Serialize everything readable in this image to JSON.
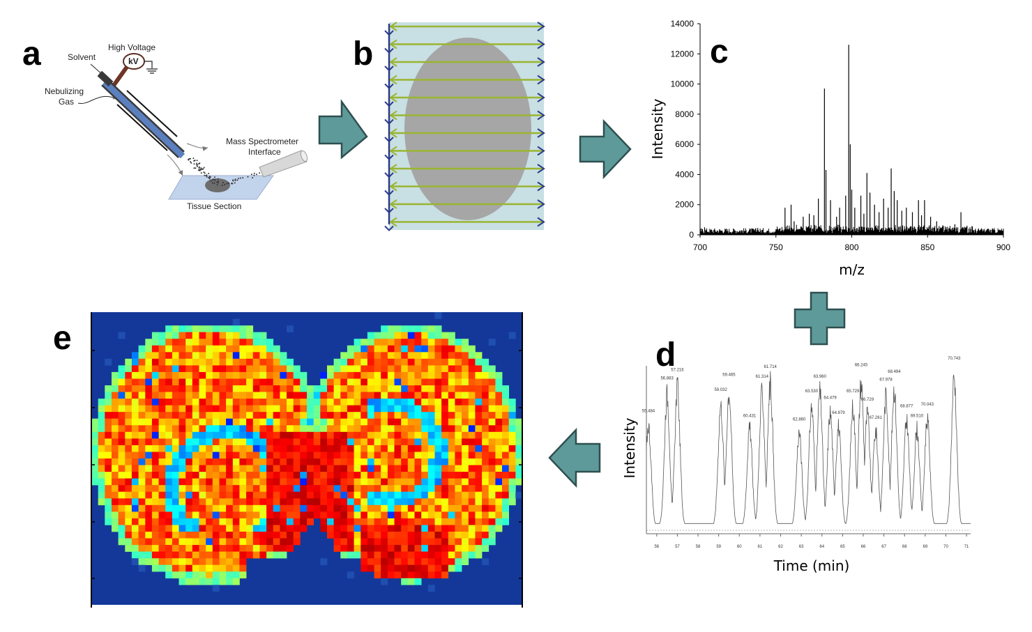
{
  "panels": {
    "a": {
      "letter": "a",
      "labels": {
        "high_voltage": "High Voltage",
        "kv": "kV",
        "solvent": "Solvent",
        "nebulizing_1": "Nebulizing",
        "nebulizing_2": "Gas",
        "ms_interface_1": "Mass Spectrometer",
        "ms_interface_2": "Interface",
        "tissue_section": "Tissue Section"
      }
    },
    "b": {
      "letter": "b",
      "scan_rows": 12
    },
    "c": {
      "letter": "c"
    },
    "d": {
      "letter": "d"
    },
    "e": {
      "letter": "e",
      "grid_cols": 64,
      "grid_rows": 44
    }
  },
  "colors": {
    "arrow_fill": "#5e9a9a",
    "arrow_stroke": "#2f4f4f",
    "scan_line": "#9ab530",
    "scan_arrow": "#2c3a8a",
    "scan_bg": "#c8dfe3",
    "tissue_gray": "#a6a6a6",
    "heatmap_bg": "#14389a"
  },
  "chart_data": [
    {
      "id": "mass-spectrum",
      "type": "line",
      "title": "",
      "xlabel": "m/z",
      "ylabel": "Intensity",
      "xlim": [
        700,
        900
      ],
      "ylim": [
        0,
        14000
      ],
      "xticks": [
        700,
        750,
        800,
        850,
        900
      ],
      "yticks": [
        0,
        2000,
        4000,
        6000,
        8000,
        10000,
        12000,
        14000
      ],
      "peaks": [
        {
          "x": 703,
          "y": 500
        },
        {
          "x": 738,
          "y": 450
        },
        {
          "x": 756,
          "y": 1800
        },
        {
          "x": 760,
          "y": 2000
        },
        {
          "x": 762,
          "y": 900
        },
        {
          "x": 768,
          "y": 1200
        },
        {
          "x": 772,
          "y": 1400
        },
        {
          "x": 775,
          "y": 1300
        },
        {
          "x": 778,
          "y": 2400
        },
        {
          "x": 782,
          "y": 9700
        },
        {
          "x": 783,
          "y": 4300
        },
        {
          "x": 786,
          "y": 2300
        },
        {
          "x": 790,
          "y": 1200
        },
        {
          "x": 792,
          "y": 1800
        },
        {
          "x": 796,
          "y": 2600
        },
        {
          "x": 798,
          "y": 12600
        },
        {
          "x": 799,
          "y": 6000
        },
        {
          "x": 800,
          "y": 3000
        },
        {
          "x": 802,
          "y": 1800
        },
        {
          "x": 806,
          "y": 2600
        },
        {
          "x": 808,
          "y": 1400
        },
        {
          "x": 810,
          "y": 4100
        },
        {
          "x": 812,
          "y": 2800
        },
        {
          "x": 815,
          "y": 2000
        },
        {
          "x": 818,
          "y": 1500
        },
        {
          "x": 821,
          "y": 2400
        },
        {
          "x": 824,
          "y": 1800
        },
        {
          "x": 826,
          "y": 4400
        },
        {
          "x": 828,
          "y": 2900
        },
        {
          "x": 830,
          "y": 2300
        },
        {
          "x": 833,
          "y": 1600
        },
        {
          "x": 836,
          "y": 1800
        },
        {
          "x": 840,
          "y": 1500
        },
        {
          "x": 844,
          "y": 2300
        },
        {
          "x": 846,
          "y": 1300
        },
        {
          "x": 848,
          "y": 2300
        },
        {
          "x": 852,
          "y": 1200
        },
        {
          "x": 856,
          "y": 900
        },
        {
          "x": 868,
          "y": 700
        },
        {
          "x": 872,
          "y": 1500
        },
        {
          "x": 876,
          "y": 600
        },
        {
          "x": 890,
          "y": 400
        }
      ]
    },
    {
      "id": "lc-chromatogram",
      "type": "line",
      "title": "",
      "xlabel": "Time (min)",
      "ylabel": "Intensity",
      "xlim": [
        55.5,
        71.2
      ],
      "xticks": [
        "56",
        "57",
        "58",
        "59",
        "60",
        "61",
        "62",
        "63",
        "64",
        "65",
        "66",
        "67",
        "68",
        "69",
        "70",
        "71"
      ],
      "peak_labels": [
        {
          "x": 55.6,
          "y": 0.68,
          "label": "55.484"
        },
        {
          "x": 56.5,
          "y": 0.88,
          "label": "56.883"
        },
        {
          "x": 57.0,
          "y": 0.93,
          "label": "57.216"
        },
        {
          "x": 59.1,
          "y": 0.81,
          "label": "59.032"
        },
        {
          "x": 59.5,
          "y": 0.9,
          "label": "59.465"
        },
        {
          "x": 60.5,
          "y": 0.65,
          "label": "60.431"
        },
        {
          "x": 61.1,
          "y": 0.89,
          "label": "61.314"
        },
        {
          "x": 61.5,
          "y": 0.95,
          "label": "61.714"
        },
        {
          "x": 62.9,
          "y": 0.63,
          "label": "62.860"
        },
        {
          "x": 63.5,
          "y": 0.8,
          "label": "63.530"
        },
        {
          "x": 63.9,
          "y": 0.89,
          "label": "63.960"
        },
        {
          "x": 64.4,
          "y": 0.76,
          "label": "64.479"
        },
        {
          "x": 64.8,
          "y": 0.67,
          "label": "64.879"
        },
        {
          "x": 65.5,
          "y": 0.8,
          "label": "65.729"
        },
        {
          "x": 65.9,
          "y": 0.96,
          "label": "66.245"
        },
        {
          "x": 66.2,
          "y": 0.75,
          "label": "66.729"
        },
        {
          "x": 66.6,
          "y": 0.64,
          "label": "67.261"
        },
        {
          "x": 67.1,
          "y": 0.87,
          "label": "67.978"
        },
        {
          "x": 67.5,
          "y": 0.92,
          "label": "68.494"
        },
        {
          "x": 68.1,
          "y": 0.71,
          "label": "68.877"
        },
        {
          "x": 68.6,
          "y": 0.65,
          "label": "69.510"
        },
        {
          "x": 69.1,
          "y": 0.72,
          "label": "70.043"
        },
        {
          "x": 70.4,
          "y": 1.0,
          "label": "70.743"
        }
      ]
    },
    {
      "id": "brain-ion-image",
      "type": "heatmap",
      "title": "",
      "xlabel": "",
      "ylabel": "",
      "colormap": "jet",
      "values": "64 x 44 pixel intensity map (coronal brain section)"
    }
  ]
}
